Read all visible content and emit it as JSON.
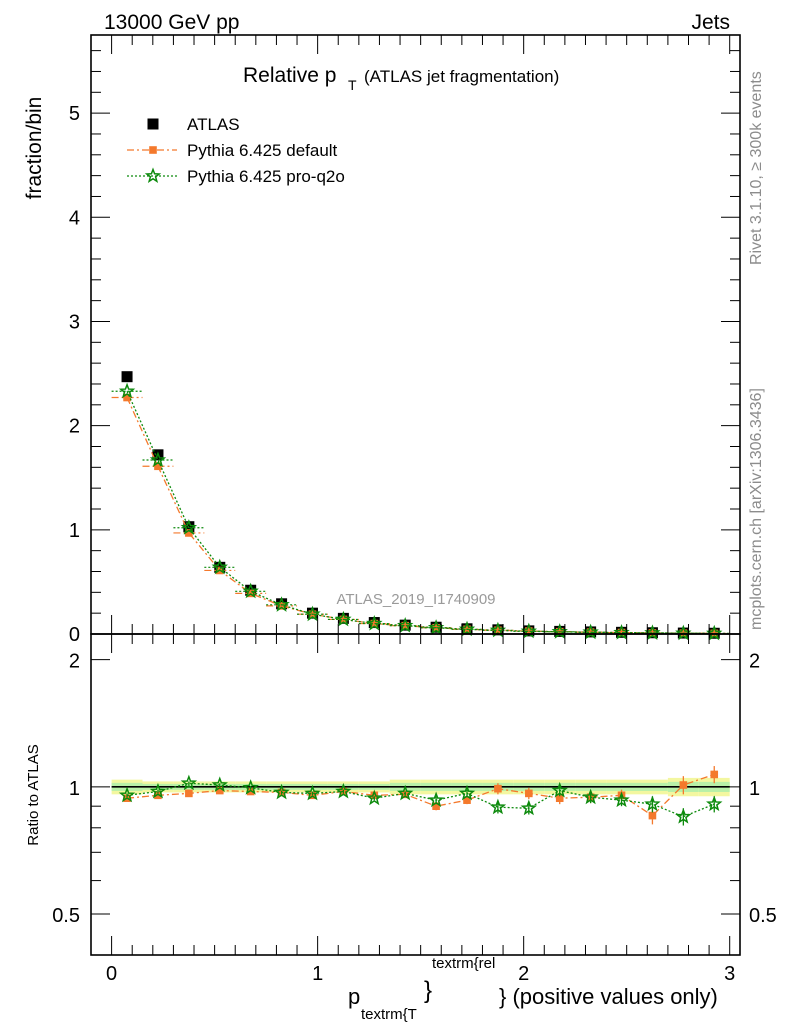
{
  "header": {
    "left": "13000 GeV pp",
    "right": "Jets"
  },
  "side": {
    "rivet": "Rivet 3.1.10, ≥ 300k events",
    "mcplots": "mcplots.cern.ch [arXiv:1306.3436]"
  },
  "chart_data": [
    {
      "type": "scatter",
      "panel": "main",
      "title_main": "Relative p",
      "title_sub": "T",
      "title_rest": "(ATLAS jet fragmentation)",
      "ylabel": "fraction/bin",
      "watermark": "ATLAS_2019_I1740909",
      "xlim": [
        -0.1,
        3.05
      ],
      "ylim": [
        0,
        5.75
      ],
      "yticks": [
        0,
        1,
        2,
        3,
        4,
        5
      ],
      "ytick_labels": [
        "0",
        "1",
        "2",
        "3",
        "4",
        "5"
      ],
      "legend_position": "top-left",
      "x": [
        0.075,
        0.225,
        0.375,
        0.525,
        0.675,
        0.825,
        0.975,
        1.125,
        1.275,
        1.425,
        1.575,
        1.725,
        1.875,
        2.025,
        2.175,
        2.325,
        2.475,
        2.625,
        2.775,
        2.925
      ],
      "series": [
        {
          "name": "ATLAS",
          "color": "#000000",
          "marker": "square",
          "values": [
            2.47,
            1.72,
            1.03,
            0.64,
            0.42,
            0.29,
            0.2,
            0.15,
            0.11,
            0.085,
            0.065,
            0.05,
            0.04,
            0.03,
            0.025,
            0.02,
            0.016,
            0.012,
            0.009,
            0.007
          ]
        },
        {
          "name": "Pythia 6.425 default",
          "color": "#f4792c",
          "marker": "filled-square",
          "line": "dash-dot",
          "values": [
            2.27,
            1.61,
            0.97,
            0.61,
            0.39,
            0.27,
            0.19,
            0.14,
            0.1,
            0.08,
            0.06,
            0.045,
            0.036,
            0.028,
            0.022,
            0.018,
            0.014,
            0.01,
            0.008,
            0.006
          ]
        },
        {
          "name": "Pythia 6.425 pro-q2o",
          "color": "#0c8a0c",
          "marker": "open-star",
          "line": "dotted",
          "values": [
            2.33,
            1.67,
            1.02,
            0.64,
            0.41,
            0.28,
            0.19,
            0.14,
            0.1,
            0.08,
            0.06,
            0.045,
            0.035,
            0.026,
            0.021,
            0.017,
            0.013,
            0.01,
            0.007,
            0.006
          ]
        }
      ]
    },
    {
      "type": "scatter",
      "panel": "ratio",
      "ylabel": "Ratio to ATLAS",
      "xlabel_main": "p",
      "xlabel_sub": "textrm{T",
      "xlabel_sup": "textrm{rel",
      "xlabel_brace": "}",
      "xlabel_rest": "} (positive values only)",
      "xlim": [
        -0.1,
        3.05
      ],
      "xticks": [
        0,
        1,
        2,
        3
      ],
      "xtick_labels": [
        "0",
        "1",
        "2",
        "3"
      ],
      "ylim": [
        0.4,
        2.3
      ],
      "ylog": true,
      "yticks": [
        0.5,
        1,
        2
      ],
      "ytick_labels": [
        "0.5",
        "1",
        "2"
      ],
      "x": [
        0.075,
        0.225,
        0.375,
        0.525,
        0.675,
        0.825,
        0.975,
        1.125,
        1.275,
        1.425,
        1.575,
        1.725,
        1.875,
        2.025,
        2.175,
        2.325,
        2.475,
        2.625,
        2.775,
        2.925
      ],
      "band": [
        0.04,
        0.03,
        0.03,
        0.03,
        0.03,
        0.03,
        0.03,
        0.03,
        0.03,
        0.04,
        0.04,
        0.04,
        0.04,
        0.04,
        0.04,
        0.04,
        0.04,
        0.04,
        0.05,
        0.05
      ],
      "series": [
        {
          "name": "Pythia 6.425 default",
          "color": "#f4792c",
          "marker": "filled-square",
          "line": "dash-dot",
          "values": [
            0.94,
            0.955,
            0.965,
            0.98,
            0.975,
            0.97,
            0.955,
            0.975,
            0.955,
            0.96,
            0.9,
            0.93,
            0.99,
            0.965,
            0.94,
            0.945,
            0.955,
            0.855,
            1.01,
            1.07
          ],
          "errors": [
            0.01,
            0.01,
            0.01,
            0.01,
            0.01,
            0.01,
            0.01,
            0.01,
            0.01,
            0.01,
            0.02,
            0.02,
            0.03,
            0.03,
            0.03,
            0.03,
            0.03,
            0.04,
            0.05,
            0.05
          ]
        },
        {
          "name": "Pythia 6.425 pro-q2o",
          "color": "#0c8a0c",
          "marker": "open-star",
          "line": "dotted",
          "values": [
            0.955,
            0.975,
            1.02,
            1.01,
            0.995,
            0.97,
            0.965,
            0.975,
            0.94,
            0.965,
            0.93,
            0.965,
            0.895,
            0.89,
            0.98,
            0.945,
            0.93,
            0.91,
            0.85,
            0.91
          ],
          "errors": [
            0.01,
            0.01,
            0.01,
            0.01,
            0.01,
            0.01,
            0.01,
            0.01,
            0.01,
            0.01,
            0.02,
            0.02,
            0.03,
            0.03,
            0.03,
            0.03,
            0.03,
            0.04,
            0.04,
            0.04
          ]
        }
      ]
    }
  ]
}
